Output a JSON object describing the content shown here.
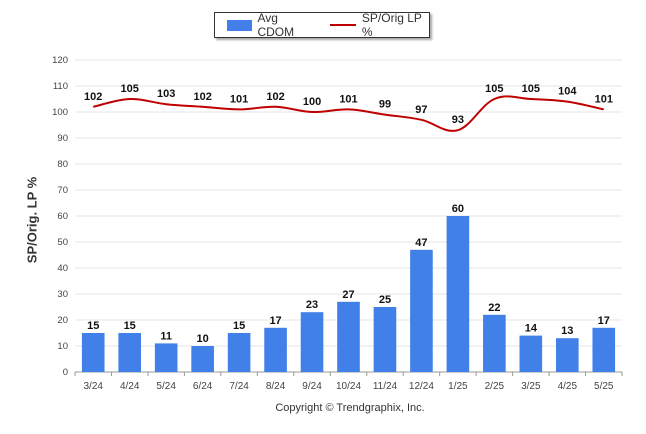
{
  "chart_data": {
    "type": "bar",
    "categories": [
      "3/24",
      "4/24",
      "5/24",
      "6/24",
      "7/24",
      "8/24",
      "9/24",
      "10/24",
      "11/24",
      "12/24",
      "1/25",
      "2/25",
      "3/25",
      "4/25",
      "5/25"
    ],
    "series": [
      {
        "name": "Avg CDOM",
        "type": "bar",
        "color": "#4080e8",
        "values": [
          15,
          15,
          11,
          10,
          15,
          17,
          23,
          27,
          25,
          47,
          60,
          22,
          14,
          13,
          17
        ]
      },
      {
        "name": "SP/Orig LP %",
        "type": "line",
        "color": "#c00000",
        "values": [
          102,
          105,
          103,
          102,
          101,
          102,
          100,
          101,
          99,
          97,
          93,
          105,
          105,
          104,
          101
        ]
      }
    ],
    "ylabel": "SP/Orig. LP %",
    "ylim": [
      0,
      120
    ],
    "yticks": [
      0,
      10,
      20,
      30,
      40,
      50,
      60,
      70,
      80,
      90,
      100,
      110,
      120
    ],
    "grid": true,
    "legend_position": "top-center"
  },
  "footer": {
    "copyright": "Copyright © Trendgraphix, Inc."
  }
}
